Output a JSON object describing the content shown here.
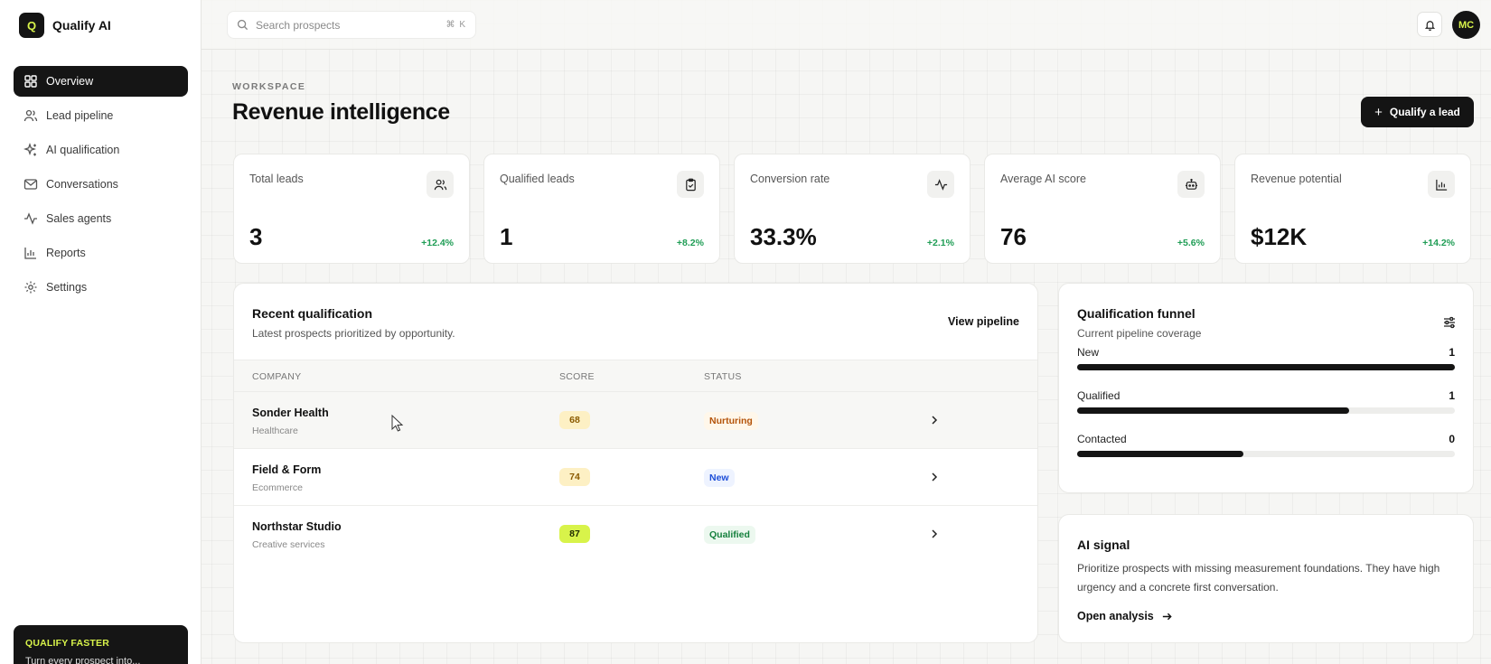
{
  "brand": {
    "mark": "Q",
    "name": "Qualify AI"
  },
  "sidebar": {
    "items": [
      {
        "label": "Overview",
        "icon": "grid-icon",
        "active": true
      },
      {
        "label": "Lead pipeline",
        "icon": "users-icon"
      },
      {
        "label": "AI qualification",
        "icon": "sparkles-icon"
      },
      {
        "label": "Conversations",
        "icon": "mail-icon"
      },
      {
        "label": "Sales agents",
        "icon": "activity-icon"
      },
      {
        "label": "Reports",
        "icon": "bar-chart-icon"
      },
      {
        "label": "Settings",
        "icon": "gear-icon"
      }
    ],
    "promo": {
      "title": "QUALIFY FASTER",
      "text": "Turn every prospect into..."
    }
  },
  "topbar": {
    "search": {
      "placeholder": "Search prospects",
      "shortcut": "⌘ K"
    },
    "avatar_initials": "MC"
  },
  "header": {
    "eyebrow": "WORKSPACE",
    "title": "Revenue intelligence",
    "action_label": "Qualify a lead"
  },
  "stats": [
    {
      "label": "Total leads",
      "value": "3",
      "delta": "+12.4%",
      "icon": "users-icon"
    },
    {
      "label": "Qualified leads",
      "value": "1",
      "delta": "+8.2%",
      "icon": "clipboard-check-icon"
    },
    {
      "label": "Conversion rate",
      "value": "33.3%",
      "delta": "+2.1%",
      "icon": "activity-icon"
    },
    {
      "label": "Average AI score",
      "value": "76",
      "delta": "+5.6%",
      "icon": "bot-icon"
    },
    {
      "label": "Revenue potential",
      "value": "$12K",
      "delta": "+14.2%",
      "icon": "bar-chart-icon"
    }
  ],
  "recent": {
    "title": "Recent qualification",
    "subtitle": "Latest prospects prioritized by opportunity.",
    "view_link": "View pipeline",
    "columns": [
      "COMPANY",
      "SCORE",
      "STATUS"
    ],
    "rows": [
      {
        "company": "Sonder Health",
        "industry": "Healthcare",
        "score": "68",
        "status": "Nurturing"
      },
      {
        "company": "Field & Form",
        "industry": "Ecommerce",
        "score": "74",
        "status": "New"
      },
      {
        "company": "Northstar Studio",
        "industry": "Creative services",
        "score": "87",
        "status": "Qualified"
      }
    ]
  },
  "funnel": {
    "title": "Qualification funnel",
    "subtitle": "Current pipeline coverage",
    "stages": [
      {
        "label": "New",
        "count": "1",
        "fill": 1.0
      },
      {
        "label": "Qualified",
        "count": "1",
        "fill": 0.72
      },
      {
        "label": "Contacted",
        "count": "0",
        "fill": 0.44
      }
    ]
  },
  "signal": {
    "title": "AI signal",
    "text": "Prioritize prospects with missing measurement foundations. They have high urgency and a concrete first conversation.",
    "link": "Open analysis"
  },
  "colors": {
    "accent": "#d8f34a",
    "dark": "#141414",
    "positive": "#1f9d55",
    "status_nurturing": "#b45309",
    "status_new": "#1d4ed8",
    "status_qualified": "#15803d"
  }
}
